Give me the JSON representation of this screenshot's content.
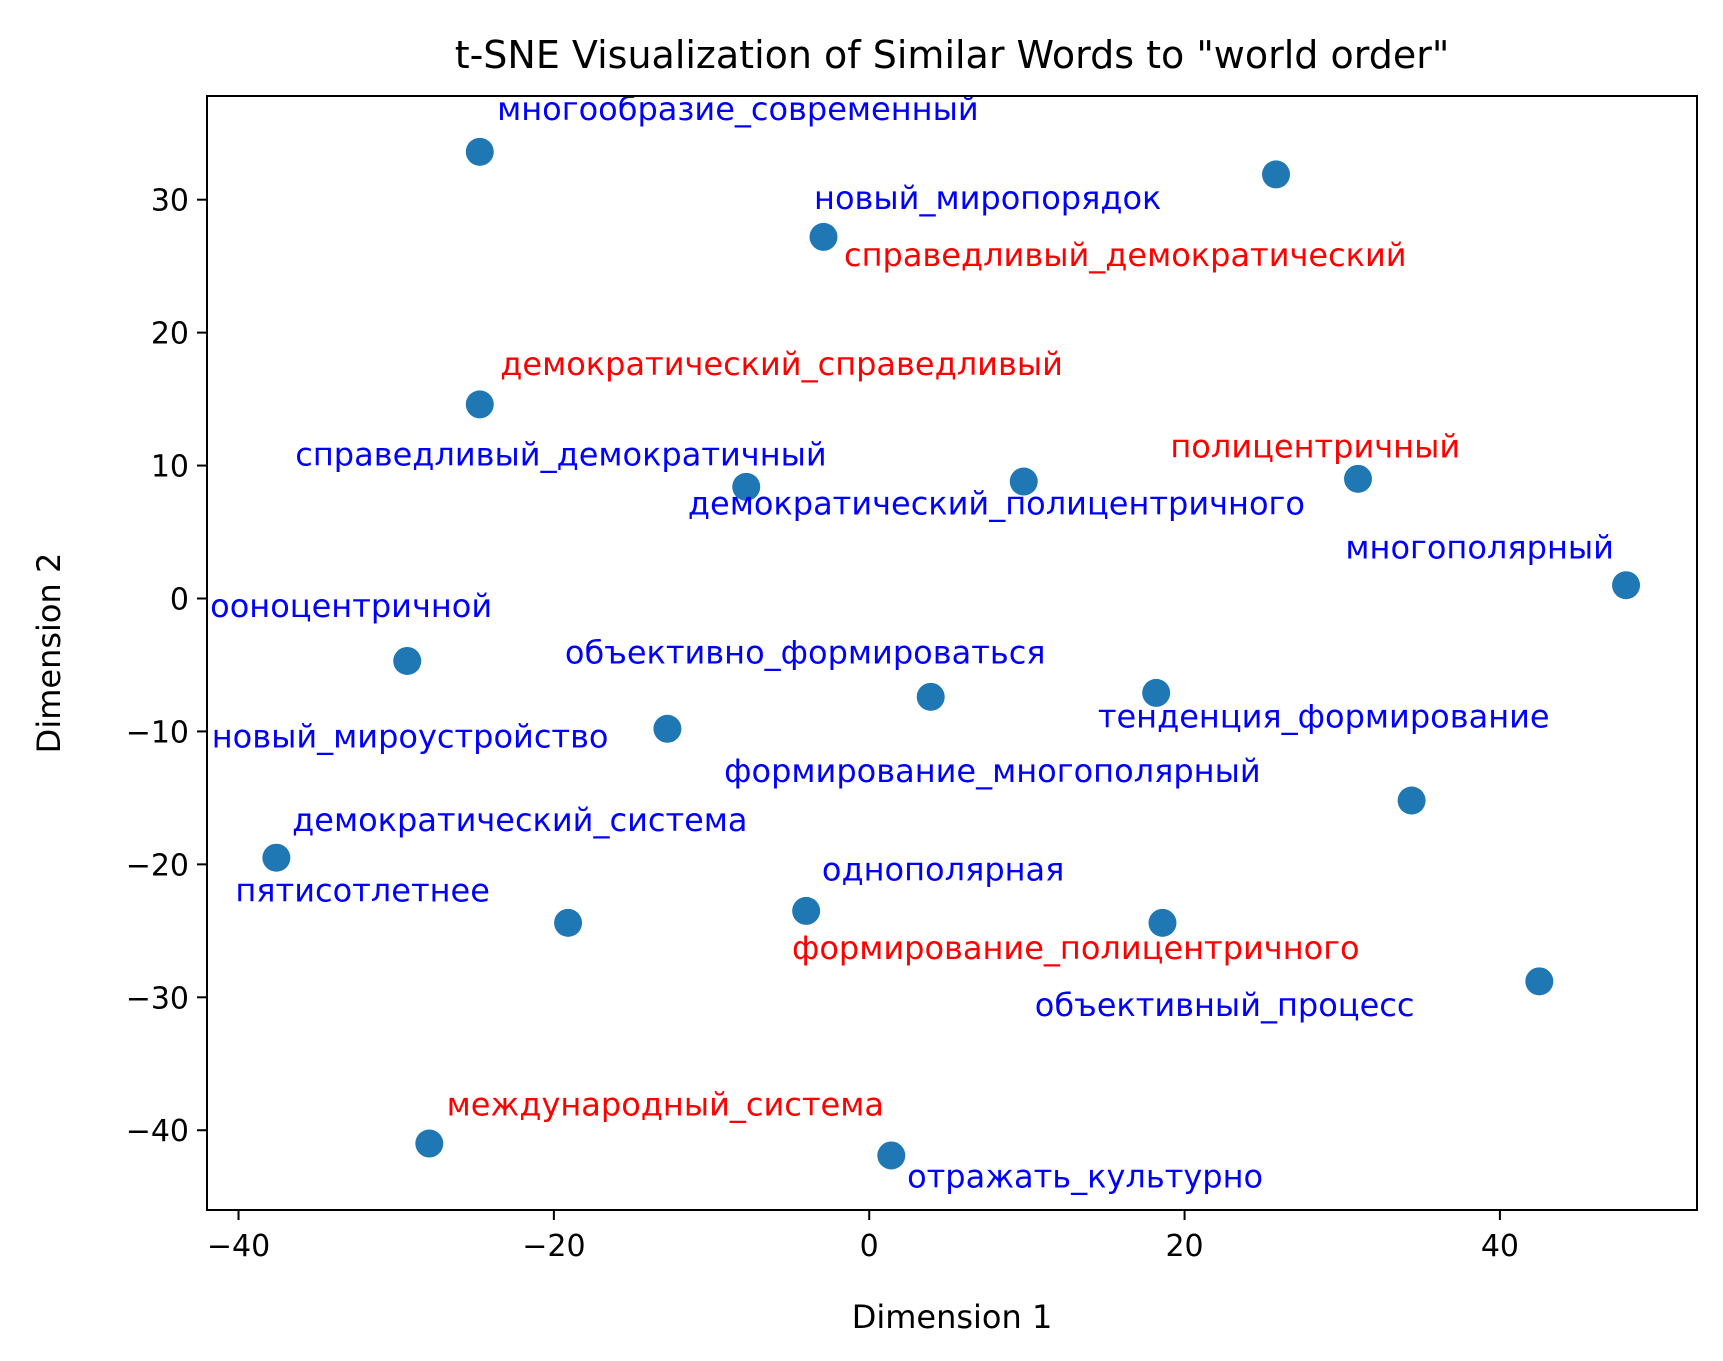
{
  "chart_data": {
    "type": "scatter",
    "title": "t-SNE Visualization of Similar Words to \"world order\"",
    "xlabel": "Dimension 1",
    "ylabel": "Dimension 2",
    "xlim": [
      -42,
      52.5
    ],
    "ylim": [
      -46,
      37.8
    ],
    "x_ticks": [
      -40,
      -20,
      0,
      20,
      40
    ],
    "y_ticks": [
      30,
      20,
      10,
      0,
      -10,
      -20,
      -30,
      -40
    ],
    "x_tick_labels": [
      "−40",
      "−20",
      "0",
      "20",
      "40"
    ],
    "y_tick_labels": [
      "30",
      "20",
      "10",
      "0",
      "−10",
      "−20",
      "−30",
      "−40"
    ],
    "grid": false,
    "marker_color": "#1f77b4",
    "label_colors": {
      "blue": "#0000ff",
      "red": "#ff0000"
    },
    "points": [
      {
        "label": "многообразие_современный",
        "x": -24.7,
        "y": 33.6,
        "color": "blue",
        "dx": 1.1,
        "dy": 2.4
      },
      {
        "label": "новый_миропорядок",
        "x": 25.8,
        "y": 31.9,
        "color": "blue",
        "dx": -29.3,
        "dy": -2.6
      },
      {
        "label": "справедливый_демократический",
        "x": -2.9,
        "y": 27.2,
        "color": "red",
        "dx": 1.3,
        "dy": -2.2
      },
      {
        "label": "демократический_справедливый",
        "x": -24.7,
        "y": 14.6,
        "color": "red",
        "dx": 1.3,
        "dy": 2.2
      },
      {
        "label": "справедливый_демократичный",
        "x": -7.8,
        "y": 8.4,
        "color": "blue",
        "dx": -28.6,
        "dy": 1.6
      },
      {
        "label": "демократический_полицентричного",
        "x": 9.8,
        "y": 8.8,
        "color": "blue",
        "dx": -21.3,
        "dy": -2.5
      },
      {
        "label": "полицентричный",
        "x": 31.0,
        "y": 9.0,
        "color": "red",
        "dx": -11.9,
        "dy": 1.6
      },
      {
        "label": "многополярный",
        "x": 48.0,
        "y": 1.0,
        "color": "blue",
        "dx": -17.8,
        "dy": 2.0
      },
      {
        "label": "ооноцентричной",
        "x": -29.3,
        "y": -4.7,
        "color": "blue",
        "dx": -12.5,
        "dy": 3.3
      },
      {
        "label": "объективно_формироваться",
        "x": 3.9,
        "y": -7.4,
        "color": "blue",
        "dx": -23.2,
        "dy": 2.5
      },
      {
        "label": "тенденция_формирование",
        "x": 18.2,
        "y": -7.1,
        "color": "blue",
        "dx": -3.7,
        "dy": -2.6
      },
      {
        "label": "новый_мироустройство",
        "x": -12.8,
        "y": -9.8,
        "color": "blue",
        "dx": -28.9,
        "dy": -1.4
      },
      {
        "label": "формирование_многополярный",
        "x": 34.4,
        "y": -15.2,
        "color": "blue",
        "dx": -43.6,
        "dy": 1.4
      },
      {
        "label": "демократический_система",
        "x": -37.6,
        "y": -19.5,
        "color": "blue",
        "dx": 1.0,
        "dy": 2.0
      },
      {
        "label": "пятисотлетнее",
        "x": -19.1,
        "y": -24.4,
        "color": "blue",
        "dx": -21.1,
        "dy": 1.6
      },
      {
        "label": "однополярная",
        "x": -4.0,
        "y": -23.5,
        "color": "blue",
        "dx": 1.0,
        "dy": 2.3
      },
      {
        "label": "формирование_полицентричного",
        "x": 18.6,
        "y": -24.4,
        "color": "red",
        "dx": -23.5,
        "dy": -2.7
      },
      {
        "label": "объективный_процесс",
        "x": 42.5,
        "y": -28.8,
        "color": "blue",
        "dx": -32.0,
        "dy": -2.6
      },
      {
        "label": "международный_система",
        "x": -27.9,
        "y": -41.0,
        "color": "red",
        "dx": 1.1,
        "dy": 2.1
      },
      {
        "label": "отражать_культурно",
        "x": 1.4,
        "y": -41.9,
        "color": "blue",
        "dx": 1.0,
        "dy": -2.4
      }
    ]
  }
}
